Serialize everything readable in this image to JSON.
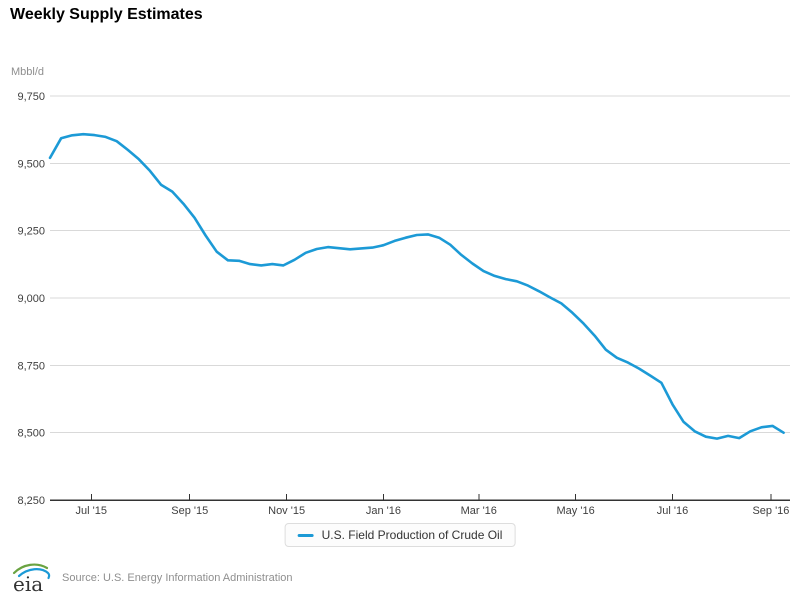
{
  "title": "Weekly Supply Estimates",
  "legend": {
    "label": "U.S. Field Production of Crude Oil"
  },
  "footer": {
    "logo_text": "eia",
    "source": "Source: U.S. Energy Information Administration"
  },
  "colors": {
    "line": "#1c9ad6",
    "grid": "#d9d9d9",
    "axis": "#333333",
    "tick_text": "#404040",
    "muted_text": "#8f8f8f",
    "legend_bg": "#fcfcfc",
    "legend_border": "#dddddd",
    "logo_green": "#6aa341",
    "logo_blue": "#1c9ad6",
    "logo_text_color": "#333333"
  },
  "chart_data": {
    "type": "line",
    "title": "Weekly Supply Estimates",
    "ylabel": "Mbbl/d",
    "xlabel": "",
    "ylim": [
      8250,
      9750
    ],
    "y_ticks": [
      9750,
      9500,
      9250,
      9000,
      8750,
      8500,
      8250
    ],
    "y_tick_labels": [
      "9,750",
      "9,500",
      "9,250",
      "9,000",
      "8,750",
      "8,500",
      "8,250"
    ],
    "x_range": [
      "2015-06-05",
      "2016-09-13"
    ],
    "x_ticks": [
      "2015-07-01",
      "2015-09-01",
      "2015-11-01",
      "2016-01-01",
      "2016-03-01",
      "2016-05-01",
      "2016-07-01",
      "2016-09-01"
    ],
    "x_tick_labels": [
      "Jul '15",
      "Sep '15",
      "Nov '15",
      "Jan '16",
      "Mar '16",
      "May '16",
      "Jul '16",
      "Sep '16"
    ],
    "grid": "horizontal",
    "legend_position": "bottom",
    "series": [
      {
        "name": "U.S. Field Production of Crude Oil",
        "color": "#1c9ad6",
        "x": [
          "2015-06-05",
          "2015-06-12",
          "2015-06-19",
          "2015-06-26",
          "2015-07-03",
          "2015-07-10",
          "2015-07-17",
          "2015-07-24",
          "2015-07-31",
          "2015-08-07",
          "2015-08-14",
          "2015-08-21",
          "2015-08-28",
          "2015-09-04",
          "2015-09-11",
          "2015-09-18",
          "2015-09-25",
          "2015-10-02",
          "2015-10-09",
          "2015-10-16",
          "2015-10-23",
          "2015-10-30",
          "2015-11-06",
          "2015-11-13",
          "2015-11-20",
          "2015-11-27",
          "2015-12-04",
          "2015-12-11",
          "2015-12-18",
          "2015-12-25",
          "2016-01-01",
          "2016-01-08",
          "2016-01-15",
          "2016-01-22",
          "2016-01-29",
          "2016-02-05",
          "2016-02-12",
          "2016-02-19",
          "2016-02-26",
          "2016-03-04",
          "2016-03-11",
          "2016-03-18",
          "2016-03-25",
          "2016-04-01",
          "2016-04-08",
          "2016-04-15",
          "2016-04-22",
          "2016-04-29",
          "2016-05-06",
          "2016-05-13",
          "2016-05-20",
          "2016-05-27",
          "2016-06-03",
          "2016-06-10",
          "2016-06-17",
          "2016-06-24",
          "2016-07-01",
          "2016-07-08",
          "2016-07-15",
          "2016-07-22",
          "2016-07-29",
          "2016-08-05",
          "2016-08-12",
          "2016-08-19",
          "2016-08-26",
          "2016-09-02",
          "2016-09-09"
        ],
        "values": [
          9520,
          9593,
          9604,
          9608,
          9605,
          9598,
          9582,
          9550,
          9515,
          9472,
          9420,
          9395,
          9350,
          9298,
          9232,
          9172,
          9140,
          9138,
          9126,
          9121,
          9126,
          9121,
          9142,
          9168,
          9182,
          9189,
          9185,
          9181,
          9184,
          9187,
          9196,
          9212,
          9224,
          9234,
          9236,
          9224,
          9198,
          9160,
          9128,
          9100,
          9082,
          9070,
          9062,
          9046,
          9025,
          9002,
          8980,
          8945,
          8905,
          8860,
          8808,
          8778,
          8760,
          8738,
          8712,
          8685,
          8605,
          8540,
          8505,
          8485,
          8478,
          8488,
          8480,
          8505,
          8520,
          8525,
          8500
        ]
      }
    ]
  }
}
